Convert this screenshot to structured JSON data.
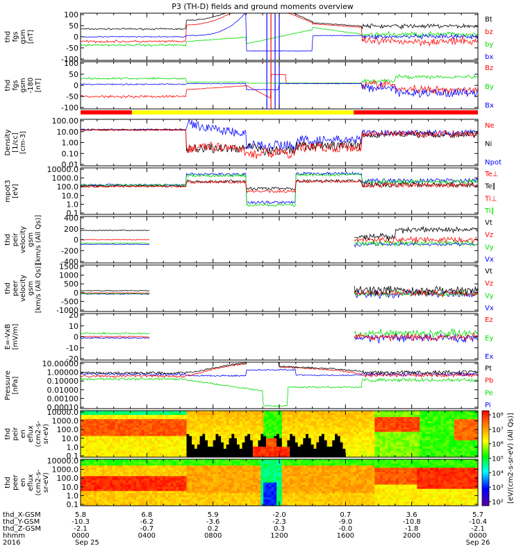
{
  "title": "P3 (TH-D) fields and ground moments overview",
  "colors": {
    "black": "#000000",
    "red": "#ff0000",
    "green": "#00dd00",
    "blue": "#0000ff",
    "yellow": "#ffff00"
  },
  "panels": [
    {
      "ylabel": [
        "thd",
        "fgs",
        "gsm",
        "[nT]"
      ],
      "ticks": [
        "100",
        "50",
        "0",
        "-50",
        "-100"
      ],
      "legend": [
        {
          "t": "Bt",
          "c": "black"
        },
        {
          "t": "bz",
          "c": "red"
        },
        {
          "t": "by",
          "c": "green"
        },
        {
          "t": "bx",
          "c": "blue"
        }
      ]
    },
    {
      "ylabel": [
        "thd",
        "fgs",
        "gsm",
        "-180",
        "[nT]"
      ],
      "ticks": [
        "100",
        "50",
        "0",
        "-50",
        "-100"
      ],
      "legend": [
        {
          "t": "Bz",
          "c": "red"
        },
        {
          "t": "By",
          "c": "green"
        },
        {
          "t": "Bx",
          "c": "blue"
        }
      ]
    },
    {
      "ylabel": [
        "Density",
        "[1/cc]",
        "[cm-3]"
      ],
      "ticks": [
        "100.00",
        "10.00",
        "1.00",
        "0.10",
        "0.01"
      ],
      "legend": [
        {
          "t": "Ne",
          "c": "red"
        },
        {
          "t": "Ni",
          "c": "black"
        },
        {
          "t": "Npot",
          "c": "blue"
        }
      ]
    },
    {
      "ylabel": [
        "mpot3",
        "[eV]"
      ],
      "ticks": [
        "10000.0",
        "1000.0",
        "100.0",
        "10.0",
        "1.0",
        "0.1"
      ],
      "legend": [
        {
          "t": "Te⊥",
          "c": "red"
        },
        {
          "t": "Te∥",
          "c": "black"
        },
        {
          "t": "Ti⊥",
          "c": "red"
        },
        {
          "t": "Ti∥",
          "c": "green"
        }
      ]
    },
    {
      "ylabel": [
        "thd",
        "peir",
        "velocity",
        "gsm",
        "[km/s (All Qs)]"
      ],
      "ticks": [
        "400",
        "200",
        "0",
        "-200",
        "-400"
      ],
      "legend": [
        {
          "t": "Vt",
          "c": "black"
        },
        {
          "t": "Vz",
          "c": "red"
        },
        {
          "t": "Vy",
          "c": "green"
        },
        {
          "t": "Vx",
          "c": "blue"
        }
      ]
    },
    {
      "ylabel": [
        "thd",
        "peer",
        "velocity",
        "gsm",
        "[km/s (All Qs)]"
      ],
      "ticks": [
        "1500",
        "1000",
        "500",
        "0",
        "-500",
        "-1000"
      ],
      "legend": [
        {
          "t": "Vt",
          "c": "black"
        },
        {
          "t": "Vz",
          "c": "red"
        },
        {
          "t": "Vy",
          "c": "green"
        },
        {
          "t": "Vx",
          "c": "blue"
        }
      ]
    },
    {
      "ylabel": [
        "E=-VxB",
        "[mV/m]"
      ],
      "ticks": [
        "20",
        "10",
        "0",
        "-10",
        "-20"
      ],
      "legend": [
        {
          "t": "Ez",
          "c": "red"
        },
        {
          "t": "Ey",
          "c": "green"
        },
        {
          "t": "Ex",
          "c": "blue"
        }
      ]
    },
    {
      "ylabel": [
        "Pressure",
        "[nPa]"
      ],
      "ticks": [
        "10.00000",
        "1.00000",
        "0.10000",
        "0.01000",
        "0.00100",
        "0.00010"
      ],
      "legend": [
        {
          "t": "Pt",
          "c": "black"
        },
        {
          "t": "Pb",
          "c": "red"
        },
        {
          "t": "Pe",
          "c": "green"
        },
        {
          "t": "Pi",
          "c": "blue"
        }
      ]
    },
    {
      "ylabel": [
        "thd",
        "peir",
        "en",
        "eflux",
        "(cm2-s-",
        "sr-eV)"
      ],
      "ticks": [
        "10000.0",
        "1000.0",
        "100.0",
        "10.0",
        "1.0",
        "0.1"
      ],
      "legend": []
    },
    {
      "ylabel": [
        "thd",
        "peer",
        "en",
        "eflux",
        "(cm2-s-",
        "sr-eV)"
      ],
      "ticks": [
        "10000.0",
        "1000.0",
        "100.0",
        "10.0",
        "1.0",
        "0.1"
      ],
      "legend": []
    }
  ],
  "colorbar": {
    "ticks": [
      "10⁸",
      "10⁷",
      "10⁶",
      "10⁵",
      "10⁴",
      "10³",
      "10²"
    ],
    "label": "[eV/(cm2-s-sr-eV) (All Qs)]"
  },
  "xaxis": {
    "row_labels": [
      "thd_X-GSM",
      "thd_Y-GSM",
      "thd_Z-GSM",
      "hhmm",
      "2016"
    ],
    "columns": [
      [
        "5.8",
        "-10.3",
        "-2.1",
        "0000",
        "Sep 25"
      ],
      [
        "6.8",
        "-6.2",
        "-0.7",
        "0400",
        ""
      ],
      [
        "5.9",
        "-3.6",
        "0.2",
        "0800",
        ""
      ],
      [
        "-2.0",
        "-2.3",
        "0.3",
        "1200",
        ""
      ],
      [
        "0.7",
        "-9.0",
        "-0.0",
        "1600",
        ""
      ],
      [
        "3.6",
        "-10.8",
        "-1.8",
        "2000",
        ""
      ],
      [
        "5.7",
        "-10.4",
        "-2.1",
        "0000",
        "Sep 26"
      ]
    ]
  },
  "chart_data": {
    "type": "line",
    "title": "P3 (TH-D) fields and ground moments overview",
    "x_hours": [
      0,
      4,
      8,
      12,
      16,
      20,
      24
    ],
    "panels": [
      {
        "name": "fgs gsm",
        "ylim": [
          -100,
          100
        ],
        "series": [
          {
            "name": "Bt",
            "values": [
              35,
              40,
              90,
              200,
              60,
              45,
              40
            ]
          },
          {
            "name": "bz",
            "values": [
              -20,
              -25,
              75,
              160,
              50,
              -10,
              -30
            ]
          },
          {
            "name": "by",
            "values": [
              -40,
              -35,
              20,
              50,
              15,
              10,
              0
            ]
          },
          {
            "name": "bx",
            "values": [
              5,
              0,
              40,
              -80,
              10,
              0,
              -10
            ]
          }
        ]
      },
      {
        "name": "fgs gsm -180",
        "ylim": [
          -120,
          100
        ],
        "series": [
          {
            "name": "Bz",
            "values": [
              -60,
              -60,
              0,
              -110,
              0,
              -30,
              -70
            ]
          },
          {
            "name": "By",
            "values": [
              20,
              20,
              0,
              -80,
              0,
              20,
              30
            ]
          },
          {
            "name": "Bx",
            "values": [
              -5,
              -5,
              0,
              -100,
              0,
              -40,
              -80
            ]
          }
        ]
      },
      {
        "name": "Density",
        "ylim": [
          0.01,
          300
        ],
        "series": [
          {
            "name": "Ne",
            "values": [
              30,
              30,
              0.5,
              0.02,
              0.5,
              10,
              10
            ]
          },
          {
            "name": "Ni",
            "values": [
              30,
              30,
              0.3,
              0.05,
              0.4,
              10,
              10
            ]
          },
          {
            "name": "Npot",
            "values": [
              30,
              30,
              5,
              2,
              2,
              15,
              10
            ]
          }
        ]
      },
      {
        "name": "mpot3",
        "ylim": [
          0.1,
          10000
        ],
        "series": [
          {
            "name": "Te⊥",
            "values": [
              100,
              100,
              400,
              50,
              300,
              200,
              100
            ]
          },
          {
            "name": "Te∥",
            "values": [
              110,
              110,
              500,
              60,
              350,
              220,
              110
            ]
          },
          {
            "name": "Ti⊥",
            "values": [
              120,
              120,
              1000,
              30,
              1500,
              200,
              150
            ]
          },
          {
            "name": "Ti∥",
            "values": [
              130,
              130,
              1300,
              40,
              1800,
              250,
              160
            ]
          }
        ]
      },
      {
        "name": "peir velocity",
        "ylim": [
          -400,
          400
        ],
        "series": [
          {
            "name": "Vt",
            "values": [
              160,
              150,
              0,
              0,
              0,
              150,
              200
            ]
          },
          {
            "name": "Vz",
            "values": [
              0,
              0,
              0,
              0,
              0,
              0,
              0
            ]
          },
          {
            "name": "Vy",
            "values": [
              -60,
              -60,
              0,
              0,
              0,
              -50,
              -40
            ]
          },
          {
            "name": "Vx",
            "values": [
              -80,
              -80,
              0,
              0,
              0,
              -80,
              -50
            ]
          }
        ]
      },
      {
        "name": "peer velocity",
        "ylim": [
          -1000,
          1500
        ],
        "series": [
          {
            "name": "Vt",
            "values": [
              80,
              80,
              0,
              0,
              0,
              300,
              250
            ]
          },
          {
            "name": "Vz",
            "values": [
              0,
              0,
              0,
              0,
              0,
              0,
              0
            ]
          },
          {
            "name": "Vy",
            "values": [
              -50,
              -50,
              0,
              0,
              0,
              -80,
              -50
            ]
          },
          {
            "name": "Vx",
            "values": [
              -70,
              -70,
              0,
              0,
              0,
              -100,
              -80
            ]
          }
        ]
      },
      {
        "name": "E=-VxB",
        "ylim": [
          -20,
          20
        ],
        "series": [
          {
            "name": "Ez",
            "values": [
              0,
              0,
              0,
              0,
              0,
              2,
              0
            ]
          },
          {
            "name": "Ey",
            "values": [
              2,
              2,
              0,
              0,
              0,
              3,
              2
            ]
          },
          {
            "name": "Ex",
            "values": [
              -1,
              -1,
              0,
              0,
              0,
              -2,
              -3
            ]
          }
        ]
      },
      {
        "name": "Pressure",
        "ylim": [
          0.0001,
          10
        ],
        "series": [
          {
            "name": "Pt",
            "values": [
              0.7,
              0.8,
              3,
              15,
              4,
              0.8,
              0.7
            ]
          },
          {
            "name": "Pb",
            "values": [
              0.3,
              0.4,
              3,
              15,
              4,
              0.5,
              0.4
            ]
          },
          {
            "name": "Pe",
            "values": [
              0.1,
              0.08,
              0.01,
              0.0001,
              0.02,
              0.1,
              0.1
            ]
          },
          {
            "name": "Pi",
            "values": [
              0.5,
              0.5,
              0.3,
              0.5,
              0.3,
              0.5,
              0.5
            ]
          }
        ]
      }
    ]
  }
}
